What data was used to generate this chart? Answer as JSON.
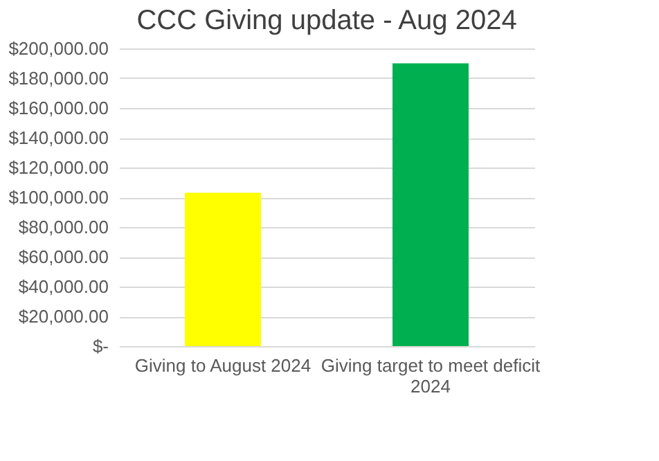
{
  "chart_data": {
    "type": "bar",
    "title": "CCC Giving update - Aug 2024",
    "categories": [
      "Giving to August 2024",
      "Giving target to meet deficit 2024"
    ],
    "values": [
      103000,
      190000
    ],
    "colors": [
      "#ffff00",
      "#00b050"
    ],
    "ylim": [
      0,
      200000
    ],
    "yticks": [
      {
        "value": 0,
        "label": "$-"
      },
      {
        "value": 20000,
        "label": "$20,000.00"
      },
      {
        "value": 40000,
        "label": "$40,000.00"
      },
      {
        "value": 60000,
        "label": "$60,000.00"
      },
      {
        "value": 80000,
        "label": "$80,000.00"
      },
      {
        "value": 100000,
        "label": "$100,000.00"
      },
      {
        "value": 120000,
        "label": "$120,000.00"
      },
      {
        "value": 140000,
        "label": "$140,000.00"
      },
      {
        "value": 160000,
        "label": "$160,000.00"
      },
      {
        "value": 180000,
        "label": "$180,000.00"
      },
      {
        "value": 200000,
        "label": "$200,000.00"
      }
    ],
    "grid": "y"
  }
}
